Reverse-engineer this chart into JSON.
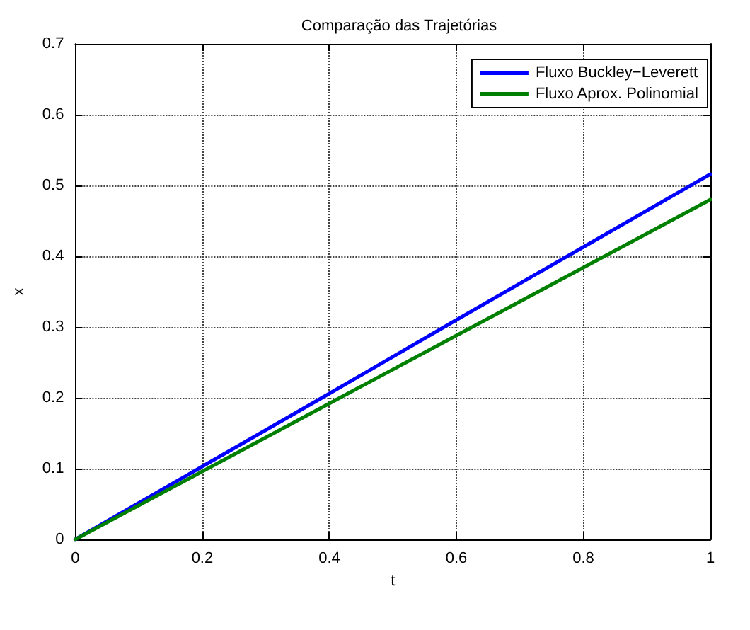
{
  "chart_data": {
    "type": "line",
    "title": "Comparação das Trajetórias",
    "xlabel": "t",
    "ylabel": "x",
    "x": [
      0,
      0.2,
      0.4,
      0.6,
      0.8,
      1
    ],
    "series": [
      {
        "name": "Fluxo Buckley−Leverett",
        "color": "#0000ff",
        "values": [
          0,
          0.103,
          0.206,
          0.31,
          0.413,
          0.516
        ]
      },
      {
        "name": "Fluxo Aprox. Polinomial",
        "color": "#008000",
        "values": [
          0,
          0.096,
          0.192,
          0.288,
          0.384,
          0.48
        ]
      }
    ],
    "xlim": [
      0,
      1
    ],
    "xticks": [
      0,
      0.2,
      0.4,
      0.6,
      0.8,
      1
    ],
    "ylim": [
      0,
      0.7
    ],
    "yticks": [
      0,
      0.1,
      0.2,
      0.3,
      0.4,
      0.5,
      0.6,
      0.7
    ],
    "grid": true,
    "legend": "top right",
    "marker": "none",
    "line_style": "solid"
  }
}
